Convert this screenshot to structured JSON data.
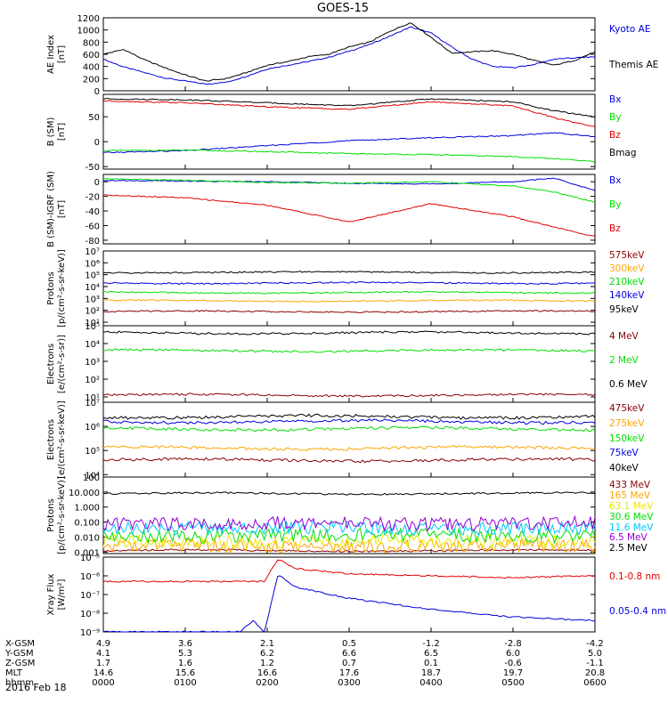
{
  "title": "GOES-15",
  "date_label": "2016 Feb 18",
  "colors": {
    "black": "#000000",
    "red": "#e00000",
    "green": "#00e000",
    "blue": "#0000e0",
    "orange": "#ffa500",
    "yellow": "#e8e800",
    "cyan": "#00c8ff",
    "darkred": "#8b0000",
    "purple": "#9400d3"
  },
  "chart_data": [
    {
      "type": "line",
      "ylabel_lines": [
        "AE Index",
        "[nT]"
      ],
      "ylim": [
        0,
        1200
      ],
      "yticks": [
        "0",
        "200",
        "400",
        "600",
        "800",
        "1000",
        "1200"
      ],
      "series": [
        {
          "name": "Kyoto AE",
          "color": "blue",
          "x": [
            0,
            15,
            30,
            45,
            60,
            75,
            90,
            105,
            120,
            135,
            150,
            165,
            180,
            195,
            210,
            225,
            240,
            255,
            270,
            285,
            300,
            315,
            330,
            345,
            360
          ],
          "values": [
            520,
            390,
            300,
            210,
            160,
            110,
            140,
            240,
            360,
            420,
            480,
            550,
            650,
            760,
            900,
            1050,
            950,
            720,
            520,
            400,
            380,
            430,
            520,
            540,
            560
          ]
        },
        {
          "name": "Themis AE",
          "color": "black",
          "x": [
            0,
            15,
            30,
            45,
            60,
            75,
            90,
            105,
            120,
            135,
            150,
            165,
            180,
            195,
            210,
            225,
            240,
            255,
            270,
            285,
            300,
            315,
            330,
            345,
            360
          ],
          "values": [
            600,
            680,
            510,
            380,
            260,
            160,
            200,
            300,
            420,
            480,
            560,
            600,
            720,
            800,
            980,
            1120,
            880,
            620,
            640,
            660,
            600,
            500,
            420,
            500,
            640
          ]
        }
      ]
    },
    {
      "type": "line",
      "ylabel_lines": [
        "B (SM)",
        "[nT]"
      ],
      "ylim": [
        -55,
        95
      ],
      "yticks": [
        "-50",
        "0",
        "50"
      ],
      "ytick_values": [
        -50,
        0,
        50
      ],
      "series": [
        {
          "name": "Bx",
          "color": "blue",
          "x": [
            0,
            60,
            120,
            180,
            240,
            300,
            330,
            360
          ],
          "values": [
            -22,
            -18,
            -8,
            2,
            8,
            12,
            18,
            10
          ]
        },
        {
          "name": "By",
          "color": "green",
          "x": [
            0,
            60,
            120,
            180,
            240,
            300,
            330,
            360
          ],
          "values": [
            -18,
            -17,
            -20,
            -24,
            -26,
            -30,
            -34,
            -40
          ]
        },
        {
          "name": "Bz",
          "color": "red",
          "x": [
            0,
            60,
            120,
            180,
            240,
            300,
            330,
            360
          ],
          "values": [
            82,
            78,
            70,
            65,
            80,
            72,
            48,
            30
          ]
        },
        {
          "name": "Bmag",
          "color": "black",
          "x": [
            0,
            60,
            120,
            180,
            240,
            300,
            330,
            360
          ],
          "values": [
            86,
            84,
            78,
            72,
            86,
            80,
            62,
            50
          ]
        }
      ]
    },
    {
      "type": "line",
      "ylabel_lines": [
        "B (SM)-IGRF (SM)",
        "[nT]"
      ],
      "ylim": [
        -85,
        10
      ],
      "yticks": [
        "-80",
        "-60",
        "-40",
        "-20",
        "0"
      ],
      "ytick_values": [
        -80,
        -60,
        -40,
        -20,
        0
      ],
      "series": [
        {
          "name": "Bx",
          "color": "blue",
          "x": [
            0,
            60,
            120,
            180,
            240,
            300,
            330,
            360
          ],
          "values": [
            2,
            1,
            0,
            -2,
            -3,
            0,
            5,
            -12
          ]
        },
        {
          "name": "By",
          "color": "green",
          "x": [
            0,
            60,
            120,
            180,
            240,
            300,
            330,
            360
          ],
          "values": [
            4,
            2,
            -1,
            -2,
            0,
            -6,
            -14,
            -28
          ]
        },
        {
          "name": "Bz",
          "color": "red",
          "x": [
            0,
            60,
            120,
            180,
            240,
            300,
            330,
            360
          ],
          "values": [
            -18,
            -22,
            -32,
            -55,
            -30,
            -48,
            -62,
            -75
          ]
        }
      ]
    },
    {
      "type": "line",
      "ylabel_lines": [
        "Protons",
        "[p/(cm²-s-sr-keV)]"
      ],
      "log": true,
      "ylim_log": [
        0.7,
        7
      ],
      "yticks": [
        "10¹",
        "10²",
        "10³",
        "10⁴",
        "10⁵",
        "10⁶",
        "10⁷"
      ],
      "ytick_values": [
        1,
        2,
        3,
        4,
        5,
        6,
        7
      ],
      "series": [
        {
          "name": "575keV",
          "color": "darkred",
          "values_log": 1.9
        },
        {
          "name": "300keV",
          "color": "orange",
          "values_log": 2.8
        },
        {
          "name": "210keV",
          "color": "green",
          "values_log": 3.5
        },
        {
          "name": "140keV",
          "color": "blue",
          "values_log": 4.3
        },
        {
          "name": "95keV",
          "color": "black",
          "values_log": 5.2
        }
      ]
    },
    {
      "type": "line",
      "ylabel_lines": [
        "Electrons",
        "[e/(cm²-s-sr)]"
      ],
      "log": true,
      "ylim_log": [
        0.7,
        5
      ],
      "yticks": [
        "10¹",
        "10²",
        "10³",
        "10⁴",
        "10⁵"
      ],
      "ytick_values": [
        1,
        2,
        3,
        4,
        5
      ],
      "series": [
        {
          "name": "4 MeV",
          "color": "darkred",
          "values_log": 1.1
        },
        {
          "name": "2 MeV",
          "color": "green",
          "values_log": 3.6
        },
        {
          "name": "0.6 MeV",
          "color": "black",
          "values_log": 4.6
        }
      ]
    },
    {
      "type": "line",
      "ylabel_lines": [
        "Electrons",
        "[e/(cm²-s-sr-keV)]"
      ],
      "log": true,
      "ylim_log": [
        3.9,
        7
      ],
      "yticks": [
        "10⁴",
        "10⁵",
        "10⁶",
        "10⁷"
      ],
      "ytick_values": [
        4,
        5,
        6,
        7
      ],
      "series": [
        {
          "name": "475keV",
          "color": "darkred",
          "values_log": 4.6
        },
        {
          "name": "275keV",
          "color": "orange",
          "values_log": 5.1
        },
        {
          "name": "150keV",
          "color": "green",
          "values_log": 5.9
        },
        {
          "name": "75keV",
          "color": "blue",
          "values_log": 6.2
        },
        {
          "name": "40keV",
          "color": "black",
          "values_log": 6.4
        }
      ]
    },
    {
      "type": "line",
      "ylabel_lines": [
        "Protons",
        "[p/(cm²-s-sr-keV)]"
      ],
      "log": true,
      "ylim_log": [
        -3.1,
        2
      ],
      "yticks": [
        "0.001",
        "0.010",
        "0.100",
        "1.000",
        "10.000",
        "100"
      ],
      "ytick_values": [
        -3,
        -2,
        -1,
        0,
        1,
        2
      ],
      "series": [
        {
          "name": "433 MeV",
          "color": "darkred",
          "values_log": -2.9
        },
        {
          "name": "165 MeV",
          "color": "orange",
          "values_log": -2.6
        },
        {
          "name": "63.1 MeV",
          "color": "yellow",
          "values_log": -2.3
        },
        {
          "name": "30.6 MeV",
          "color": "green",
          "values_log": -1.9
        },
        {
          "name": "11.6 MeV",
          "color": "cyan",
          "values_log": -1.4
        },
        {
          "name": "6.5 MeV",
          "color": "purple",
          "values_log": -1.1
        },
        {
          "name": "2.5 MeV",
          "color": "black",
          "values_log": 0.9
        }
      ]
    },
    {
      "type": "line",
      "ylabel_lines": [
        "Xray Flux",
        "[W/m²]"
      ],
      "log": true,
      "ylim_log": [
        -9,
        -5
      ],
      "yticks": [
        "10⁻⁹",
        "10⁻⁸",
        "10⁻⁷",
        "10⁻⁶",
        "10⁻⁵"
      ],
      "ytick_values": [
        -9,
        -8,
        -7,
        -6,
        -5
      ],
      "series": [
        {
          "name": "0.1-0.8 nm",
          "color": "red",
          "x": [
            0,
            60,
            105,
            118,
            128,
            140,
            180,
            240,
            300,
            360
          ],
          "values_log": [
            -6.3,
            -6.3,
            -6.3,
            -6.3,
            -5.1,
            -5.6,
            -5.9,
            -6.0,
            -6.1,
            -6.0
          ]
        },
        {
          "name": "0.05-0.4 nm",
          "color": "blue",
          "x": [
            0,
            60,
            100,
            110,
            118,
            128,
            140,
            180,
            240,
            300,
            360
          ],
          "values_log": [
            -9.0,
            -9.0,
            -9.0,
            -8.4,
            -9.0,
            -5.9,
            -6.6,
            -7.2,
            -7.8,
            -8.2,
            -8.4
          ]
        }
      ]
    }
  ],
  "x_axis": {
    "row_labels": [
      "X-GSM",
      "Y-GSM",
      "Z-GSM",
      "MLT",
      "hhmm"
    ],
    "columns": [
      [
        "4.9",
        "4.1",
        "1.7",
        "14.6",
        "0000"
      ],
      [
        "3.6",
        "5.3",
        "1.6",
        "15.6",
        "0100"
      ],
      [
        "2.1",
        "6.2",
        "1.2",
        "16.6",
        "0200"
      ],
      [
        "0.5",
        "6.6",
        "0.7",
        "17.6",
        "0300"
      ],
      [
        "-1.2",
        "6.5",
        "0.1",
        "18.7",
        "0400"
      ],
      [
        "-2.8",
        "6.0",
        "-0.6",
        "19.7",
        "0500"
      ],
      [
        "-4.2",
        "5.0",
        "-1.1",
        "20.8",
        "0600"
      ]
    ]
  }
}
